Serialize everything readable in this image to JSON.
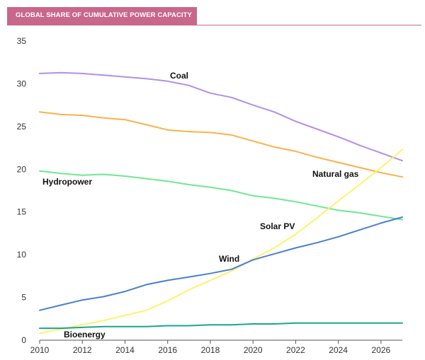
{
  "header": {
    "title": "GLOBAL SHARE OF CUMULATIVE POWER CAPACITY",
    "band_color": "#c8678a"
  },
  "chart_data": {
    "type": "line",
    "title": "GLOBAL SHARE OF CUMULATIVE POWER CAPACITY",
    "xlabel": "",
    "ylabel": "",
    "xlim": [
      2010,
      2027
    ],
    "ylim": [
      0,
      35
    ],
    "x_ticks": [
      "2010",
      "2012",
      "2014",
      "2016",
      "2018",
      "2020",
      "2022",
      "2024",
      "2026"
    ],
    "y_ticks": [
      "0",
      "5",
      "10",
      "15",
      "20",
      "25",
      "30",
      "35"
    ],
    "grid": false,
    "x": [
      2010,
      2011,
      2012,
      2013,
      2014,
      2015,
      2016,
      2017,
      2018,
      2019,
      2020,
      2021,
      2022,
      2023,
      2024,
      2025,
      2026,
      2027
    ],
    "series": [
      {
        "name": "Coal",
        "color": "#b48ee8",
        "values": [
          31.2,
          31.3,
          31.2,
          31.0,
          30.8,
          30.6,
          30.3,
          29.8,
          28.9,
          28.4,
          27.5,
          26.7,
          25.6,
          24.7,
          23.8,
          22.8,
          21.9,
          21.0
        ]
      },
      {
        "name": "Natural gas",
        "color": "#f9b24a",
        "values": [
          26.7,
          26.4,
          26.3,
          26.0,
          25.8,
          25.2,
          24.6,
          24.4,
          24.3,
          24.0,
          23.3,
          22.6,
          22.1,
          21.4,
          20.8,
          20.2,
          19.6,
          19.1
        ]
      },
      {
        "name": "Hydropower",
        "color": "#6ee892",
        "values": [
          19.8,
          19.5,
          19.3,
          19.4,
          19.2,
          18.9,
          18.6,
          18.2,
          17.9,
          17.5,
          16.9,
          16.6,
          16.2,
          15.7,
          15.2,
          14.9,
          14.5,
          14.1
        ]
      },
      {
        "name": "Solar PV",
        "color": "#fdf36b",
        "values": [
          0.8,
          1.3,
          1.8,
          2.3,
          2.9,
          3.5,
          4.6,
          5.9,
          7.0,
          8.1,
          9.5,
          10.8,
          12.4,
          14.3,
          16.3,
          18.2,
          20.2,
          22.3
        ]
      },
      {
        "name": "Wind",
        "color": "#4a7fcf",
        "values": [
          3.5,
          4.1,
          4.7,
          5.1,
          5.7,
          6.5,
          7.0,
          7.4,
          7.8,
          8.3,
          9.4,
          10.1,
          10.8,
          11.4,
          12.1,
          12.9,
          13.7,
          14.4
        ]
      },
      {
        "name": "Bioenergy",
        "color": "#1aa58e",
        "values": [
          1.4,
          1.4,
          1.5,
          1.6,
          1.6,
          1.6,
          1.7,
          1.7,
          1.8,
          1.8,
          1.9,
          1.9,
          2.0,
          2.0,
          2.0,
          2.0,
          2.0,
          2.0
        ]
      }
    ]
  }
}
